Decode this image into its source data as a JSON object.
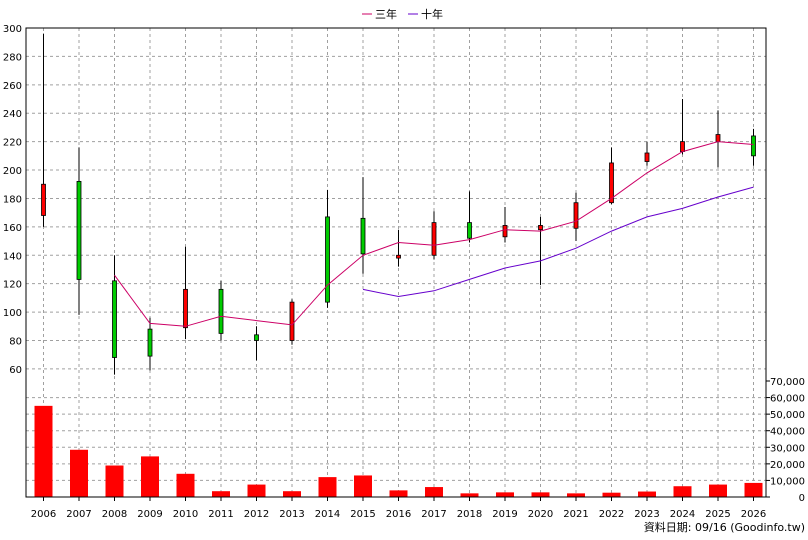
{
  "legend": {
    "ma3_label": "三年",
    "ma10_label": "十年"
  },
  "footer": {
    "source": "資料日期: 09/16  (Goodinfo.tw)"
  },
  "colors": {
    "up": "#00cc00",
    "down": "#ff0000",
    "volume": "#ff0000",
    "ma3": "#cc0066",
    "ma10": "#6600cc",
    "grid": "#a0a0a0"
  },
  "chart_data": {
    "type": "candlestick",
    "x": [
      "2006",
      "2007",
      "2008",
      "2009",
      "2010",
      "2011",
      "2012",
      "2013",
      "2014",
      "2015",
      "2016",
      "2017",
      "2018",
      "2019",
      "2020",
      "2021",
      "2022",
      "2023",
      "2024",
      "2025",
      "2026"
    ],
    "price_axis": {
      "ylim": [
        55,
        300
      ],
      "ticks": [
        60,
        80,
        100,
        120,
        140,
        160,
        180,
        200,
        220,
        240,
        260,
        280,
        300
      ]
    },
    "volume_axis": {
      "ylim": [
        0,
        70000
      ],
      "ticks": [
        "0",
        "10,000",
        "20,000",
        "30,000",
        "40,000",
        "50,000",
        "60,000",
        "70,000"
      ],
      "tick_values": [
        0,
        10000,
        20000,
        30000,
        40000,
        50000,
        60000,
        70000
      ]
    },
    "candles": [
      {
        "year": "2006",
        "open": 190,
        "high": 296,
        "low": 160,
        "close": 168
      },
      {
        "year": "2007",
        "open": 123,
        "high": 216,
        "low": 98,
        "close": 192
      },
      {
        "year": "2008",
        "open": 68,
        "high": 140,
        "low": 56,
        "close": 122
      },
      {
        "year": "2009",
        "open": 69,
        "high": 96,
        "low": 59,
        "close": 88
      },
      {
        "year": "2010",
        "open": 116,
        "high": 146,
        "low": 81,
        "close": 89
      },
      {
        "year": "2011",
        "open": 85,
        "high": 122,
        "low": 80,
        "close": 116
      },
      {
        "year": "2012",
        "open": 80,
        "high": 90,
        "low": 66,
        "close": 84
      },
      {
        "year": "2013",
        "open": 107,
        "high": 109,
        "low": 77,
        "close": 80
      },
      {
        "year": "2014",
        "open": 107,
        "high": 186,
        "low": 103,
        "close": 167
      },
      {
        "year": "2015",
        "open": 141,
        "high": 195,
        "low": 127,
        "close": 166
      },
      {
        "year": "2016",
        "open": 140,
        "high": 158,
        "low": 132,
        "close": 138
      },
      {
        "year": "2017",
        "open": 163,
        "high": 171,
        "low": 137,
        "close": 140
      },
      {
        "year": "2018",
        "open": 152,
        "high": 185,
        "low": 149,
        "close": 163
      },
      {
        "year": "2019",
        "open": 161,
        "high": 174,
        "low": 149,
        "close": 153
      },
      {
        "year": "2020",
        "open": 161,
        "high": 167,
        "low": 119,
        "close": 158
      },
      {
        "year": "2021",
        "open": 177,
        "high": 184,
        "low": 150,
        "close": 159
      },
      {
        "year": "2022",
        "open": 205,
        "high": 216,
        "low": 176,
        "close": 177
      },
      {
        "year": "2023",
        "open": 212,
        "high": 220,
        "low": 203,
        "close": 206
      },
      {
        "year": "2024",
        "open": 220,
        "high": 250,
        "low": 211,
        "close": 213
      },
      {
        "year": "2025",
        "open": 225,
        "high": 242,
        "low": 202,
        "close": 220
      },
      {
        "year": "2026",
        "open": 210,
        "high": 229,
        "low": 203,
        "close": 224
      }
    ],
    "series": [
      {
        "name": "三年",
        "values": [
          null,
          null,
          126,
          92,
          90,
          97,
          94,
          91,
          119,
          140,
          149,
          147,
          151,
          158,
          157,
          164,
          180,
          198,
          213,
          220,
          218
        ]
      },
      {
        "name": "十年",
        "values": [
          null,
          null,
          null,
          null,
          null,
          null,
          null,
          null,
          null,
          116,
          111,
          115,
          123,
          131,
          136,
          145,
          157,
          167,
          173,
          181,
          188
        ]
      }
    ],
    "volume": [
      55000,
      28500,
      19000,
      24500,
      14000,
      3500,
      7500,
      3500,
      12000,
      13000,
      4000,
      6000,
      2200,
      2800,
      2800,
      2200,
      2600,
      3300,
      6500,
      7500,
      8500
    ],
    "grid": true,
    "legend_position": "top-center"
  }
}
